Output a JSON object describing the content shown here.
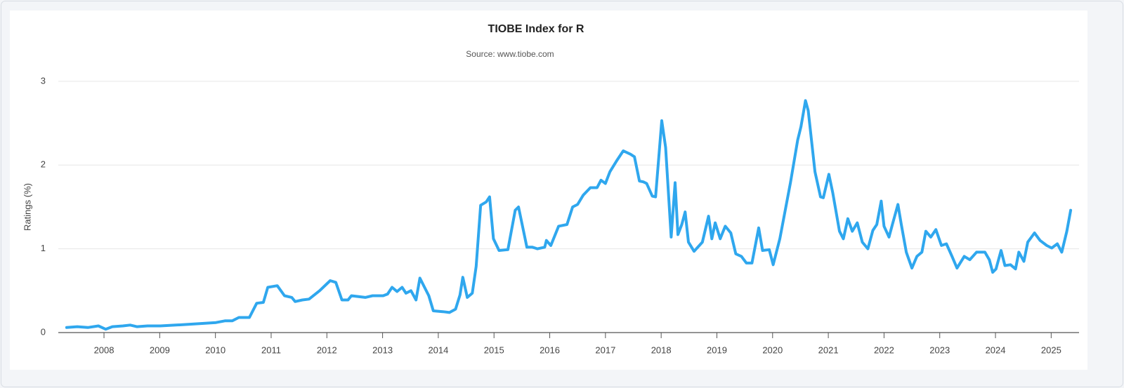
{
  "chart_data": {
    "type": "line",
    "title": "TIOBE Index for R",
    "subtitle": "Source: www.tiobe.com",
    "y_label": "Ratings (%)",
    "color": "#2fa7ee",
    "grid": true,
    "xlim": [
      2007.18,
      2025.5
    ],
    "xticks": [
      2008,
      2009,
      2010,
      2011,
      2012,
      2013,
      2014,
      2015,
      2016,
      2017,
      2018,
      2019,
      2020,
      2021,
      2022,
      2023,
      2024,
      2025
    ],
    "ylim": [
      0,
      3.1
    ],
    "yticks": [
      0,
      1,
      2,
      3
    ],
    "x": [
      2007.33,
      2007.52,
      2007.71,
      2007.9,
      2008.03,
      2008.15,
      2008.34,
      2008.47,
      2008.59,
      2008.78,
      2009.01,
      2009.29,
      2009.54,
      2009.79,
      2010.01,
      2010.17,
      2010.3,
      2010.42,
      2010.61,
      2010.74,
      2010.86,
      2010.94,
      2011.11,
      2011.24,
      2011.37,
      2011.43,
      2011.56,
      2011.68,
      2011.87,
      2012.06,
      2012.16,
      2012.27,
      2012.38,
      2012.44,
      2012.69,
      2012.82,
      2013.01,
      2013.09,
      2013.17,
      2013.26,
      2013.35,
      2013.42,
      2013.51,
      2013.6,
      2013.67,
      2013.83,
      2013.91,
      2014.08,
      2014.2,
      2014.31,
      2014.39,
      2014.44,
      2014.52,
      2014.61,
      2014.68,
      2014.76,
      2014.86,
      2014.92,
      2014.99,
      2015.09,
      2015.25,
      2015.38,
      2015.44,
      2015.53,
      2015.59,
      2015.69,
      2015.78,
      2015.91,
      2015.94,
      2016.02,
      2016.16,
      2016.31,
      2016.41,
      2016.5,
      2016.6,
      2016.73,
      2016.85,
      2016.92,
      2017.0,
      2017.08,
      2017.21,
      2017.32,
      2017.45,
      2017.52,
      2017.61,
      2017.68,
      2017.74,
      2017.84,
      2017.9,
      2018.01,
      2018.08,
      2018.18,
      2018.25,
      2018.3,
      2018.37,
      2018.43,
      2018.49,
      2018.59,
      2018.74,
      2018.85,
      2018.91,
      2018.97,
      2019.06,
      2019.15,
      2019.25,
      2019.34,
      2019.44,
      2019.53,
      2019.63,
      2019.75,
      2019.82,
      2019.94,
      2020.01,
      2020.13,
      2020.32,
      2020.45,
      2020.51,
      2020.59,
      2020.64,
      2020.76,
      2020.86,
      2020.91,
      2021.01,
      2021.08,
      2021.2,
      2021.27,
      2021.35,
      2021.43,
      2021.52,
      2021.61,
      2021.71,
      2021.8,
      2021.87,
      2021.95,
      2022.0,
      2022.09,
      2022.15,
      2022.25,
      2022.31,
      2022.4,
      2022.5,
      2022.59,
      2022.68,
      2022.75,
      2022.84,
      2022.93,
      2023.03,
      2023.12,
      2023.22,
      2023.31,
      2023.44,
      2023.54,
      2023.66,
      2023.81,
      2023.89,
      2023.95,
      2024.01,
      2024.1,
      2024.17,
      2024.27,
      2024.36,
      2024.42,
      2024.51,
      2024.58,
      2024.7,
      2024.8,
      2024.92,
      2025.01,
      2025.11,
      2025.19,
      2025.28,
      2025.35
    ],
    "values": [
      0.06,
      0.07,
      0.06,
      0.08,
      0.04,
      0.07,
      0.08,
      0.09,
      0.07,
      0.08,
      0.08,
      0.09,
      0.1,
      0.11,
      0.12,
      0.14,
      0.14,
      0.18,
      0.18,
      0.35,
      0.36,
      0.54,
      0.56,
      0.44,
      0.42,
      0.37,
      0.39,
      0.4,
      0.5,
      0.62,
      0.6,
      0.39,
      0.39,
      0.44,
      0.42,
      0.44,
      0.44,
      0.46,
      0.54,
      0.49,
      0.54,
      0.47,
      0.5,
      0.39,
      0.65,
      0.44,
      0.26,
      0.25,
      0.24,
      0.28,
      0.45,
      0.66,
      0.42,
      0.47,
      0.79,
      1.52,
      1.56,
      1.62,
      1.12,
      0.98,
      0.99,
      1.46,
      1.5,
      1.21,
      1.02,
      1.02,
      1.0,
      1.02,
      1.1,
      1.04,
      1.27,
      1.29,
      1.5,
      1.53,
      1.64,
      1.73,
      1.73,
      1.82,
      1.78,
      1.92,
      2.06,
      2.17,
      2.13,
      2.1,
      1.81,
      1.8,
      1.78,
      1.63,
      1.62,
      2.53,
      2.21,
      1.14,
      1.79,
      1.17,
      1.29,
      1.44,
      1.08,
      0.97,
      1.08,
      1.39,
      1.12,
      1.31,
      1.12,
      1.27,
      1.19,
      0.94,
      0.91,
      0.83,
      0.83,
      1.25,
      0.98,
      0.99,
      0.81,
      1.12,
      1.79,
      2.3,
      2.46,
      2.77,
      2.65,
      1.92,
      1.62,
      1.61,
      1.89,
      1.67,
      1.21,
      1.12,
      1.36,
      1.21,
      1.31,
      1.08,
      1.0,
      1.22,
      1.29,
      1.57,
      1.27,
      1.14,
      1.29,
      1.53,
      1.29,
      0.96,
      0.77,
      0.91,
      0.96,
      1.21,
      1.14,
      1.23,
      1.04,
      1.06,
      0.91,
      0.77,
      0.91,
      0.87,
      0.96,
      0.96,
      0.87,
      0.72,
      0.76,
      0.98,
      0.8,
      0.81,
      0.76,
      0.96,
      0.85,
      1.08,
      1.19,
      1.1,
      1.04,
      1.01,
      1.06,
      0.96,
      1.21,
      1.46
    ]
  }
}
